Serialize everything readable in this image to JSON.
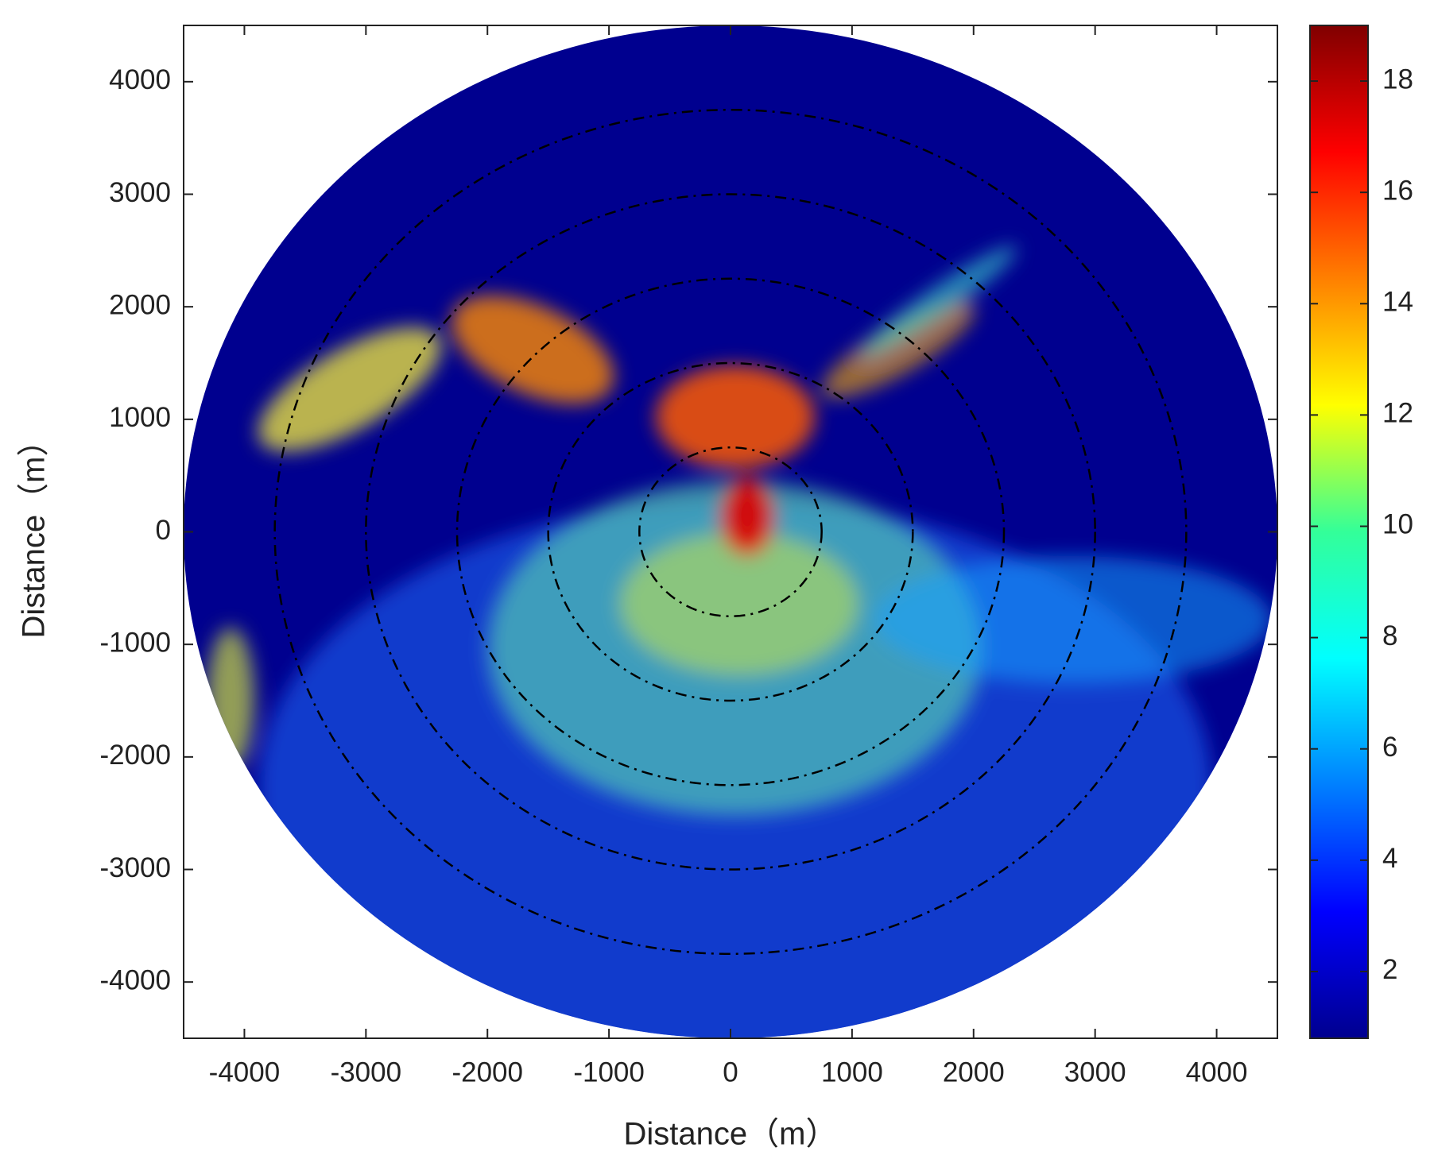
{
  "chart_data": {
    "type": "heatmap",
    "xlabel": "Distance（m）",
    "ylabel": "Distance（m）",
    "xlim": [
      -4500,
      4500
    ],
    "ylim": [
      -4500,
      4500
    ],
    "xticks": [
      -4000,
      -3000,
      -2000,
      -1000,
      0,
      1000,
      2000,
      3000,
      4000
    ],
    "yticks": [
      -4000,
      -3000,
      -2000,
      -1000,
      0,
      1000,
      2000,
      3000,
      4000
    ],
    "coverage_radius": 4500,
    "range_rings": [
      750,
      1500,
      2250,
      3000,
      3750
    ],
    "colorbar": {
      "colormap": "jet",
      "lim": [
        0.8,
        19
      ],
      "ticks": [
        2,
        4,
        6,
        8,
        10,
        12,
        14,
        16,
        18
      ]
    }
  }
}
